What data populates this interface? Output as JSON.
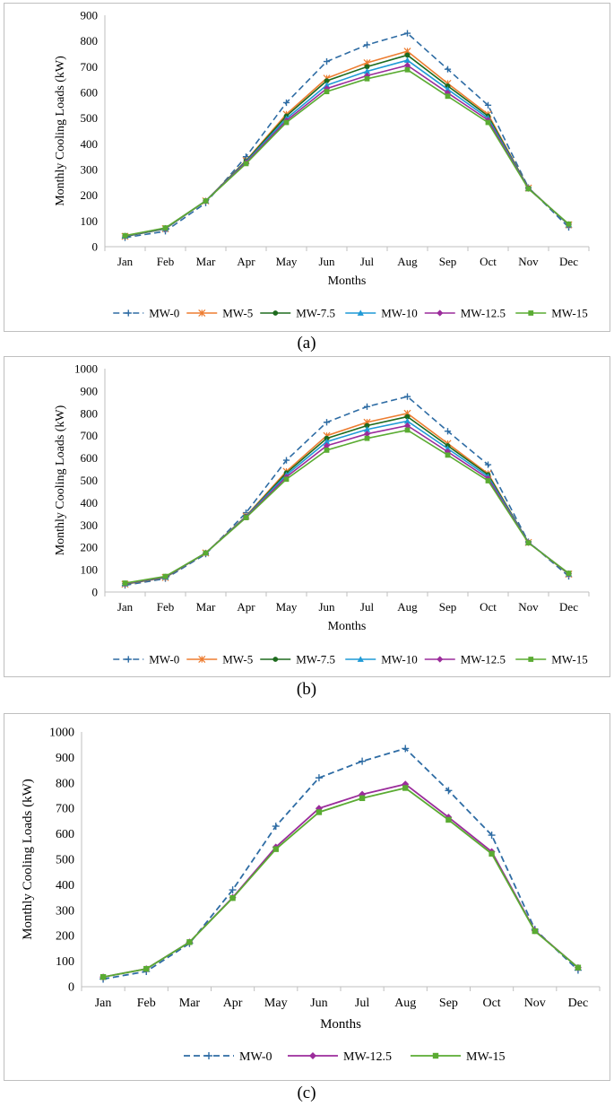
{
  "figure": {
    "panel_labels": [
      "(a)",
      "(b)",
      "(c)"
    ]
  },
  "chart_data": [
    {
      "type": "line",
      "panel": "(a)",
      "title": "",
      "xlabel": "Months",
      "ylabel": "Monthly Cooling Loads (kW)",
      "ylim": [
        0,
        900
      ],
      "ytick_step": 100,
      "grid": false,
      "legend": "bottom",
      "categories": [
        "Jan",
        "Feb",
        "Mar",
        "Apr",
        "May",
        "Jun",
        "Jul",
        "Aug",
        "Sep",
        "Oct",
        "Nov",
        "Dec"
      ],
      "series": [
        {
          "name": "MW-0",
          "color": "#2e6ca4",
          "marker": "plus",
          "dashed": true,
          "values": [
            35,
            60,
            170,
            350,
            560,
            720,
            785,
            830,
            690,
            550,
            230,
            75
          ]
        },
        {
          "name": "MW-5",
          "color": "#ed7d31",
          "marker": "star",
          "dashed": false,
          "values": [
            40,
            70,
            178,
            335,
            515,
            655,
            715,
            760,
            635,
            515,
            228,
            85
          ]
        },
        {
          "name": "MW-7.5",
          "color": "#1e6b1e",
          "marker": "circle",
          "dashed": false,
          "values": [
            40,
            70,
            178,
            333,
            508,
            645,
            700,
            745,
            625,
            508,
            228,
            85
          ]
        },
        {
          "name": "MW-10",
          "color": "#1f9ad6",
          "marker": "triangle",
          "dashed": false,
          "values": [
            41,
            71,
            178,
            330,
            498,
            628,
            682,
            725,
            612,
            500,
            227,
            86
          ]
        },
        {
          "name": "MW-12.5",
          "color": "#9b2c9b",
          "marker": "diamond",
          "dashed": false,
          "values": [
            42,
            72,
            178,
            327,
            490,
            615,
            665,
            705,
            598,
            492,
            226,
            87
          ]
        },
        {
          "name": "MW-15",
          "color": "#5aab32",
          "marker": "square",
          "dashed": false,
          "values": [
            43,
            73,
            178,
            323,
            483,
            603,
            653,
            688,
            585,
            483,
            225,
            88
          ]
        }
      ]
    },
    {
      "type": "line",
      "panel": "(b)",
      "title": "",
      "xlabel": "Months",
      "ylabel": "Monthly Cooling Loads (kW)",
      "ylim": [
        0,
        1000
      ],
      "ytick_step": 100,
      "grid": false,
      "legend": "bottom",
      "categories": [
        "Jan",
        "Feb",
        "Mar",
        "Apr",
        "May",
        "Jun",
        "Jul",
        "Aug",
        "Sep",
        "Oct",
        "Nov",
        "Dec"
      ],
      "series": [
        {
          "name": "MW-0",
          "color": "#2e6ca4",
          "marker": "plus",
          "dashed": true,
          "values": [
            30,
            60,
            170,
            355,
            590,
            760,
            830,
            875,
            720,
            570,
            225,
            70
          ]
        },
        {
          "name": "MW-5",
          "color": "#ed7d31",
          "marker": "star",
          "dashed": false,
          "values": [
            35,
            65,
            175,
            340,
            540,
            700,
            760,
            800,
            665,
            530,
            222,
            80
          ]
        },
        {
          "name": "MW-7.5",
          "color": "#1e6b1e",
          "marker": "circle",
          "dashed": false,
          "values": [
            36,
            66,
            175,
            338,
            533,
            688,
            745,
            785,
            655,
            525,
            222,
            81
          ]
        },
        {
          "name": "MW-10",
          "color": "#1f9ad6",
          "marker": "triangle",
          "dashed": false,
          "values": [
            37,
            67,
            175,
            337,
            524,
            673,
            728,
            765,
            642,
            517,
            222,
            82
          ]
        },
        {
          "name": "MW-12.5",
          "color": "#9b2c9b",
          "marker": "diamond",
          "dashed": false,
          "values": [
            38,
            68,
            175,
            335,
            515,
            655,
            708,
            745,
            628,
            508,
            221,
            83
          ]
        },
        {
          "name": "MW-15",
          "color": "#5aab32",
          "marker": "square",
          "dashed": false,
          "values": [
            40,
            70,
            175,
            333,
            505,
            635,
            688,
            725,
            613,
            498,
            220,
            84
          ]
        }
      ]
    },
    {
      "type": "line",
      "panel": "(c)",
      "title": "",
      "xlabel": "Months",
      "ylabel": "Monthly Cooling Loads (kW)",
      "ylim": [
        0,
        1000
      ],
      "ytick_step": 100,
      "grid": false,
      "legend": "bottom",
      "categories": [
        "Jan",
        "Feb",
        "Mar",
        "Apr",
        "May",
        "Jun",
        "Jul",
        "Aug",
        "Sep",
        "Oct",
        "Nov",
        "Dec"
      ],
      "series": [
        {
          "name": "MW-0",
          "color": "#2e6ca4",
          "marker": "plus",
          "dashed": true,
          "values": [
            30,
            60,
            170,
            380,
            630,
            820,
            885,
            935,
            770,
            595,
            225,
            65
          ]
        },
        {
          "name": "MW-12.5",
          "color": "#9b2c9b",
          "marker": "diamond",
          "dashed": false,
          "values": [
            38,
            70,
            175,
            350,
            548,
            700,
            755,
            795,
            665,
            530,
            220,
            75
          ]
        },
        {
          "name": "MW-15",
          "color": "#5aab32",
          "marker": "square",
          "dashed": false,
          "values": [
            38,
            70,
            175,
            348,
            540,
            685,
            740,
            780,
            655,
            522,
            218,
            75
          ]
        }
      ]
    }
  ]
}
